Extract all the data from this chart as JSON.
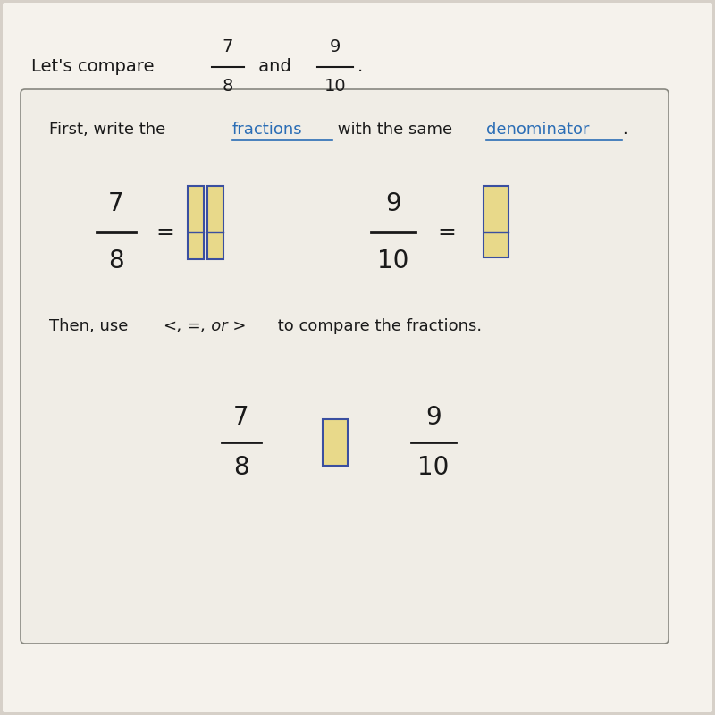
{
  "bg_color": "#d6d0c8",
  "page_bg": "#f5f2ec",
  "box_bg": "#f0ede6",
  "frac1_num": "7",
  "frac1_den": "8",
  "frac2_num": "9",
  "frac2_den": "10",
  "line1_link1": "fractions",
  "line1_link2": "denominator",
  "bar_fill": "#e8d98a",
  "bar_border": "#3a4fa0",
  "text_color": "#1a1a1a",
  "link_color": "#2a6db5"
}
